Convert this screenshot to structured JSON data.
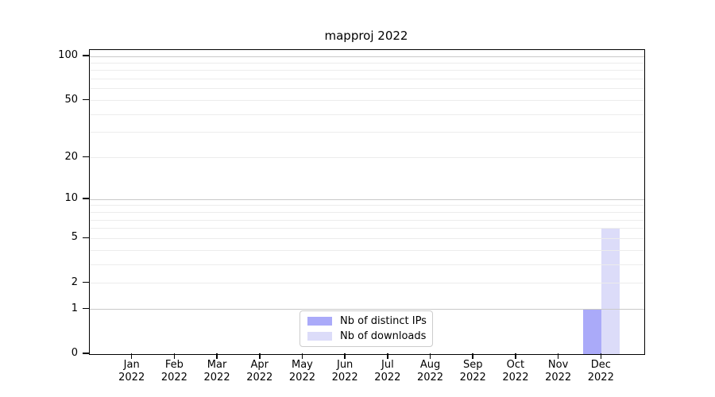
{
  "chart_data": {
    "type": "bar",
    "title": "mapproj 2022",
    "categories": [
      "Jan",
      "Feb",
      "Mar",
      "Apr",
      "May",
      "Jun",
      "Jul",
      "Aug",
      "Sep",
      "Oct",
      "Nov",
      "Dec"
    ],
    "category_year": "2022",
    "series": [
      {
        "name": "Nb of distinct IPs",
        "color": "#aaaaf9",
        "values": [
          0,
          0,
          0,
          0,
          0,
          0,
          0,
          0,
          0,
          0,
          0,
          1
        ]
      },
      {
        "name": "Nb of downloads",
        "color": "#dcdcf9",
        "values": [
          0,
          0,
          0,
          0,
          0,
          0,
          0,
          0,
          0,
          0,
          0,
          6
        ]
      }
    ],
    "xlabel": "",
    "ylabel": "",
    "y_scale": "log1p",
    "ylim": [
      0,
      100
    ],
    "y_tick_labels": [
      0,
      1,
      2,
      5,
      10,
      20,
      50,
      100
    ],
    "y_major_gridlines": [
      1,
      10,
      100
    ],
    "y_minor_gridlines": [
      2,
      3,
      4,
      5,
      6,
      7,
      8,
      9,
      20,
      30,
      40,
      50,
      60,
      70,
      80,
      90
    ],
    "grid": "both",
    "legend_position": "lower center"
  },
  "colors": {
    "axis": "#000000",
    "major_grid": "#c9c9c9",
    "minor_grid": "#ececec",
    "background": "#ffffff"
  }
}
